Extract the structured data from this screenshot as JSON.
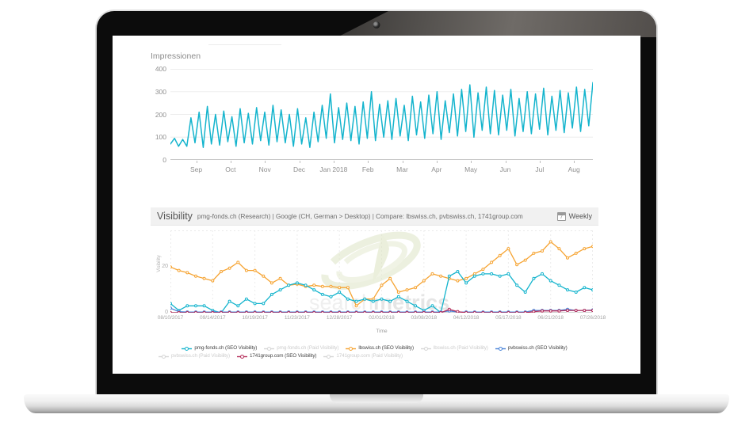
{
  "device": {
    "kind": "laptop-mockup"
  },
  "visibility_panel": {
    "title": "Visibility",
    "subtitle": "pmg-fonds.ch (Research) | Google (CH, German > Desktop) | Compare: lbswiss.ch, pvbswiss.ch, 1741group.com",
    "weekly_label": "Weekly",
    "calendar_icon": "calendar-icon"
  },
  "chart_data": [
    {
      "type": "line",
      "title": "Impressionen",
      "xlabel": "",
      "ylabel": "",
      "ylim": [
        0,
        400
      ],
      "yticks": [
        400,
        300,
        200,
        100,
        0
      ],
      "xticks": [
        "Sep",
        "Oct",
        "Nov",
        "Dec",
        "Jan 2018",
        "Feb",
        "Mar",
        "Apr",
        "May",
        "Jun",
        "Jul",
        "Aug"
      ],
      "grid": "horizontal",
      "legend_position": "none",
      "series": [
        {
          "name": "Impressionen",
          "color": "#14b4cd",
          "values": [
            70,
            95,
            60,
            90,
            60,
            185,
            75,
            210,
            55,
            235,
            70,
            200,
            65,
            215,
            80,
            190,
            60,
            225,
            75,
            205,
            70,
            230,
            85,
            210,
            65,
            240,
            80,
            220,
            75,
            200,
            60,
            225,
            70,
            185,
            55,
            210,
            80,
            240,
            95,
            290,
            75,
            230,
            90,
            250,
            85,
            235,
            70,
            255,
            95,
            300,
            85,
            245,
            100,
            260,
            90,
            270,
            105,
            240,
            85,
            280,
            110,
            255,
            95,
            285,
            115,
            300,
            90,
            260,
            120,
            290,
            105,
            310,
            125,
            330,
            100,
            295,
            130,
            320,
            115,
            305,
            110,
            285,
            130,
            310,
            105,
            270,
            125,
            300,
            115,
            290,
            135,
            315,
            110,
            280,
            130,
            305,
            120,
            295,
            140,
            320,
            125,
            310,
            150,
            340
          ]
        }
      ]
    },
    {
      "type": "line",
      "title": "Visibility",
      "xlabel": "Time",
      "ylabel": "Visibility",
      "ylim": [
        0,
        36
      ],
      "yticks": [
        20,
        0
      ],
      "xticks": [
        "08/10/2017",
        "09/14/2017",
        "10/19/2017",
        "11/23/2017",
        "12/28/2017",
        "02/01/2018",
        "03/08/2018",
        "04/12/2018",
        "05/17/2018",
        "06/21/2018",
        "07/26/2018"
      ],
      "grid": "vertical-dashed",
      "legend_position": "bottom",
      "watermark_light": "search",
      "watermark_bold": "metrics",
      "series": [
        {
          "name": "pmg-fonds.ch (SEO Visibility)",
          "color": "#14b4cd",
          "muted": false,
          "values": [
            4,
            1,
            3,
            3,
            3,
            1,
            0,
            5,
            3,
            6,
            4,
            4,
            8,
            10,
            12,
            13,
            12,
            10,
            8,
            7,
            9,
            6,
            5,
            6,
            5,
            6,
            5,
            7,
            5,
            3,
            1,
            3,
            0,
            16,
            18,
            13,
            16,
            17,
            17,
            16,
            17,
            12,
            9,
            15,
            17,
            14,
            12,
            10,
            9,
            11,
            10
          ]
        },
        {
          "name": "pmg-fonds.ch (Paid Visibility)",
          "color": "#d6d6d6",
          "muted": true,
          "values": [
            0,
            0,
            0,
            0,
            0,
            0,
            0,
            0,
            0,
            0,
            0,
            0,
            0,
            0,
            0,
            0,
            0,
            0,
            0,
            0,
            0,
            0,
            0,
            0,
            0,
            0,
            0,
            0,
            0,
            0,
            0,
            0,
            0,
            0,
            0,
            0,
            0,
            0,
            0,
            0,
            0,
            0,
            0,
            0,
            0,
            0,
            0,
            0,
            0,
            0,
            0
          ]
        },
        {
          "name": "lbswiss.ch (SEO Visibility)",
          "color": "#f6a433",
          "muted": false,
          "values": [
            20,
            18.5,
            17.5,
            16,
            15,
            14,
            18,
            19.5,
            22,
            18.5,
            18.5,
            16,
            13,
            15,
            12,
            12.5,
            11.5,
            12,
            11.5,
            11.5,
            11,
            11,
            3,
            6,
            6,
            12,
            15,
            9,
            10,
            11,
            14,
            17,
            16,
            15,
            14,
            15,
            17,
            19,
            22,
            25,
            28,
            21,
            23,
            26,
            27,
            31,
            28,
            24,
            26,
            28,
            29
          ]
        },
        {
          "name": "lbswiss.ch (Paid Visibility)",
          "color": "#d6d6d6",
          "muted": true,
          "values": [
            0,
            0,
            0,
            0,
            0,
            0,
            0,
            0,
            0,
            0,
            0,
            0,
            0,
            0,
            0,
            0,
            0,
            0,
            0,
            0,
            0,
            0,
            0,
            0,
            0,
            0,
            0,
            0,
            0,
            0,
            0,
            0,
            0,
            0,
            0,
            0,
            0,
            0,
            0,
            0,
            0,
            0,
            0,
            0,
            0,
            0,
            0,
            0,
            0,
            0,
            0
          ]
        },
        {
          "name": "pvbswiss.ch (SEO Visibility)",
          "color": "#4a84d8",
          "muted": false,
          "values": [
            2,
            0.5,
            0.3,
            0.3,
            0.3,
            0.3,
            0.3,
            0.3,
            0.3,
            0.3,
            0.3,
            0.3,
            0.3,
            0.3,
            0.3,
            0.3,
            0.3,
            0.3,
            0.3,
            0.3,
            0.3,
            0.3,
            0.3,
            0.3,
            0.3,
            0.3,
            0.3,
            0.3,
            0.3,
            0.3,
            0.3,
            0.3,
            0.3,
            0.8,
            0.3,
            0.3,
            0.3,
            0.3,
            0.3,
            0.3,
            0.3,
            0.3,
            0.3,
            1,
            1,
            1,
            1,
            1.5,
            1,
            1,
            1.2
          ]
        },
        {
          "name": "pvbswiss.ch (Paid Visibility)",
          "color": "#d6d6d6",
          "muted": true,
          "values": [
            0,
            0,
            0,
            0,
            0,
            0,
            0,
            0,
            0,
            0,
            0,
            0,
            0,
            0,
            0,
            0,
            0,
            0,
            0,
            0,
            0,
            0,
            0,
            0,
            0,
            0,
            0,
            0,
            0,
            0,
            0,
            0,
            0,
            0,
            0,
            0,
            0,
            0,
            0,
            0,
            0,
            0,
            0,
            0,
            0,
            0,
            0,
            0,
            0,
            0,
            0
          ]
        },
        {
          "name": "1741group.com (SEO Visibility)",
          "color": "#b52e5b",
          "muted": false,
          "values": [
            0,
            0,
            0,
            0,
            0,
            0,
            0,
            0,
            0,
            0,
            0,
            0,
            0,
            0,
            0,
            0,
            0,
            0,
            0,
            0,
            0,
            0,
            0,
            0,
            0,
            0,
            0,
            0,
            0,
            0,
            0,
            0,
            0,
            1.5,
            0.5,
            0,
            0,
            0,
            0,
            0,
            0,
            0,
            0,
            0.5,
            0.8,
            0.8,
            0.8,
            1,
            1,
            1,
            1
          ]
        },
        {
          "name": "1741group.com (Paid Visibility)",
          "color": "#d6d6d6",
          "muted": true,
          "values": [
            0,
            0,
            0,
            0,
            0,
            0,
            0,
            0,
            0,
            0,
            0,
            0,
            0,
            0,
            0,
            0,
            0,
            0,
            0,
            0,
            0,
            0,
            0,
            0,
            0,
            0,
            0,
            0,
            0,
            0,
            0,
            0,
            0,
            0,
            0,
            0,
            0,
            0,
            0,
            0,
            0,
            0,
            0,
            0,
            0,
            0,
            0,
            0,
            0,
            0,
            0
          ]
        }
      ]
    }
  ]
}
